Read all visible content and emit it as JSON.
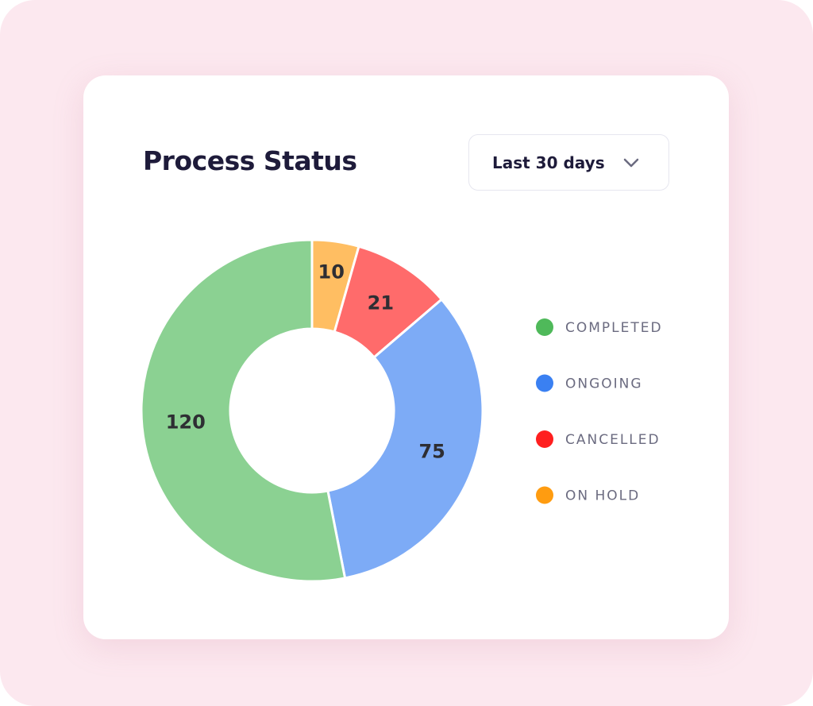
{
  "dropdown": {
    "label": "Last 30 days"
  },
  "chart_data": {
    "type": "donut",
    "title": "Process Status",
    "categories": [
      "COMPLETED",
      "ONGOING",
      "CANCELLED",
      "ON HOLD"
    ],
    "values": [
      120,
      75,
      21,
      10
    ],
    "colors": [
      "#4fb95a",
      "#3a80f2",
      "#ff1f1f",
      "#ff9c10"
    ]
  }
}
